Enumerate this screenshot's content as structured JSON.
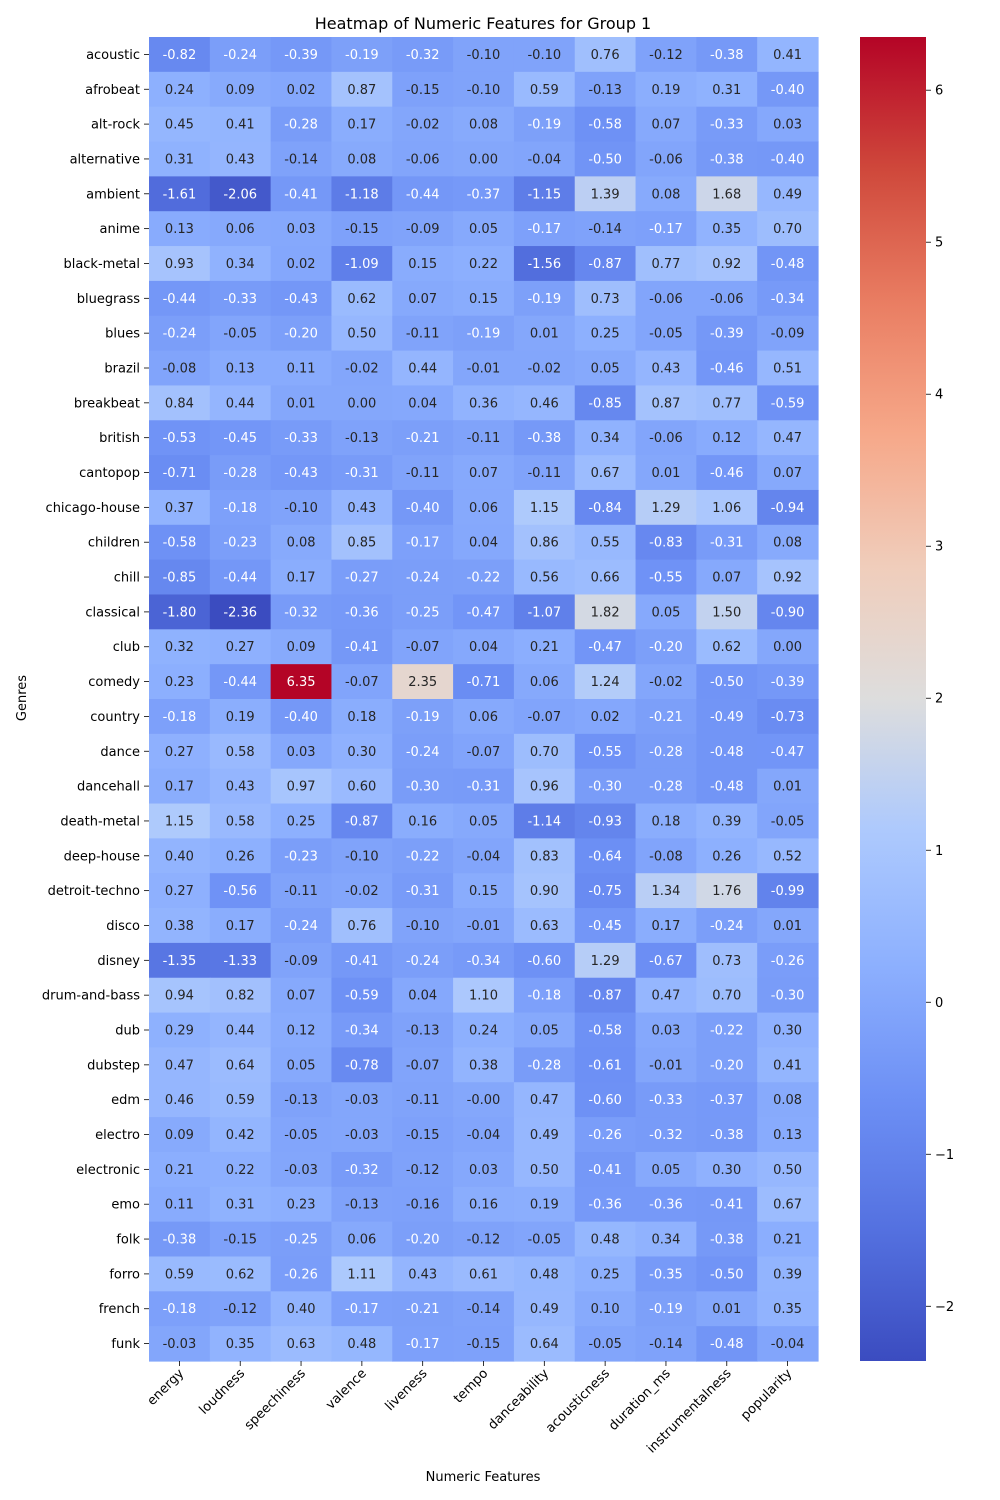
{
  "chart_data": {
    "type": "heatmap",
    "title": "Heatmap of Numeric Features for Group 1",
    "xlabel": "Numeric Features",
    "ylabel": "Genres",
    "columns": [
      "energy",
      "loudness",
      "speechiness",
      "valence",
      "liveness",
      "tempo",
      "danceability",
      "acousticness",
      "duration_ms",
      "instrumentalness",
      "popularity"
    ],
    "rows": [
      "acoustic",
      "afrobeat",
      "alt-rock",
      "alternative",
      "ambient",
      "anime",
      "black-metal",
      "bluegrass",
      "blues",
      "brazil",
      "breakbeat",
      "british",
      "cantopop",
      "chicago-house",
      "children",
      "chill",
      "classical",
      "club",
      "comedy",
      "country",
      "dance",
      "dancehall",
      "death-metal",
      "deep-house",
      "detroit-techno",
      "disco",
      "disney",
      "drum-and-bass",
      "dub",
      "dubstep",
      "edm",
      "electro",
      "electronic",
      "emo",
      "folk",
      "forro",
      "french",
      "funk"
    ],
    "values": [
      [
        "-0.82",
        "-0.24",
        "-0.39",
        "-0.19",
        "-0.32",
        "-0.10",
        "-0.10",
        "0.76",
        "-0.12",
        "-0.38",
        "0.41"
      ],
      [
        "0.24",
        "0.09",
        "0.02",
        "0.87",
        "-0.15",
        "-0.10",
        "0.59",
        "-0.13",
        "0.19",
        "0.31",
        "-0.40"
      ],
      [
        "0.45",
        "0.41",
        "-0.28",
        "0.17",
        "-0.02",
        "0.08",
        "-0.19",
        "-0.58",
        "0.07",
        "-0.33",
        "0.03"
      ],
      [
        "0.31",
        "0.43",
        "-0.14",
        "0.08",
        "-0.06",
        "0.00",
        "-0.04",
        "-0.50",
        "-0.06",
        "-0.38",
        "-0.40"
      ],
      [
        "-1.61",
        "-2.06",
        "-0.41",
        "-1.18",
        "-0.44",
        "-0.37",
        "-1.15",
        "1.39",
        "0.08",
        "1.68",
        "0.49"
      ],
      [
        "0.13",
        "0.06",
        "0.03",
        "-0.15",
        "-0.09",
        "0.05",
        "-0.17",
        "-0.14",
        "-0.17",
        "0.35",
        "0.70"
      ],
      [
        "0.93",
        "0.34",
        "0.02",
        "-1.09",
        "0.15",
        "0.22",
        "-1.56",
        "-0.87",
        "0.77",
        "0.92",
        "-0.48"
      ],
      [
        "-0.44",
        "-0.33",
        "-0.43",
        "0.62",
        "0.07",
        "0.15",
        "-0.19",
        "0.73",
        "-0.06",
        "-0.06",
        "-0.34"
      ],
      [
        "-0.24",
        "-0.05",
        "-0.20",
        "0.50",
        "-0.11",
        "-0.19",
        "0.01",
        "0.25",
        "-0.05",
        "-0.39",
        "-0.09"
      ],
      [
        "-0.08",
        "0.13",
        "0.11",
        "-0.02",
        "0.44",
        "-0.01",
        "-0.02",
        "0.05",
        "0.43",
        "-0.46",
        "0.51"
      ],
      [
        "0.84",
        "0.44",
        "0.01",
        "0.00",
        "0.04",
        "0.36",
        "0.46",
        "-0.85",
        "0.87",
        "0.77",
        "-0.59"
      ],
      [
        "-0.53",
        "-0.45",
        "-0.33",
        "-0.13",
        "-0.21",
        "-0.11",
        "-0.38",
        "0.34",
        "-0.06",
        "0.12",
        "0.47"
      ],
      [
        "-0.71",
        "-0.28",
        "-0.43",
        "-0.31",
        "-0.11",
        "0.07",
        "-0.11",
        "0.67",
        "0.01",
        "-0.46",
        "0.07"
      ],
      [
        "0.37",
        "-0.18",
        "-0.10",
        "0.43",
        "-0.40",
        "0.06",
        "1.15",
        "-0.84",
        "1.29",
        "1.06",
        "-0.94"
      ],
      [
        "-0.58",
        "-0.23",
        "0.08",
        "0.85",
        "-0.17",
        "0.04",
        "0.86",
        "0.55",
        "-0.83",
        "-0.31",
        "0.08"
      ],
      [
        "-0.85",
        "-0.44",
        "0.17",
        "-0.27",
        "-0.24",
        "-0.22",
        "0.56",
        "0.66",
        "-0.55",
        "0.07",
        "0.92"
      ],
      [
        "-1.80",
        "-2.36",
        "-0.32",
        "-0.36",
        "-0.25",
        "-0.47",
        "-1.07",
        "1.82",
        "0.05",
        "1.50",
        "-0.90"
      ],
      [
        "0.32",
        "0.27",
        "0.09",
        "-0.41",
        "-0.07",
        "0.04",
        "0.21",
        "-0.47",
        "-0.20",
        "0.62",
        "0.00"
      ],
      [
        "0.23",
        "-0.44",
        "6.35",
        "-0.07",
        "2.35",
        "-0.71",
        "0.06",
        "1.24",
        "-0.02",
        "-0.50",
        "-0.39"
      ],
      [
        "-0.18",
        "0.19",
        "-0.40",
        "0.18",
        "-0.19",
        "0.06",
        "-0.07",
        "0.02",
        "-0.21",
        "-0.49",
        "-0.73"
      ],
      [
        "0.27",
        "0.58",
        "0.03",
        "0.30",
        "-0.24",
        "-0.07",
        "0.70",
        "-0.55",
        "-0.28",
        "-0.48",
        "-0.47"
      ],
      [
        "0.17",
        "0.43",
        "0.97",
        "0.60",
        "-0.30",
        "-0.31",
        "0.96",
        "-0.30",
        "-0.28",
        "-0.48",
        "0.01"
      ],
      [
        "1.15",
        "0.58",
        "0.25",
        "-0.87",
        "0.16",
        "0.05",
        "-1.14",
        "-0.93",
        "0.18",
        "0.39",
        "-0.05"
      ],
      [
        "0.40",
        "0.26",
        "-0.23",
        "-0.10",
        "-0.22",
        "-0.04",
        "0.83",
        "-0.64",
        "-0.08",
        "0.26",
        "0.52"
      ],
      [
        "0.27",
        "-0.56",
        "-0.11",
        "-0.02",
        "-0.31",
        "0.15",
        "0.90",
        "-0.75",
        "1.34",
        "1.76",
        "-0.99"
      ],
      [
        "0.38",
        "0.17",
        "-0.24",
        "0.76",
        "-0.10",
        "-0.01",
        "0.63",
        "-0.45",
        "0.17",
        "-0.24",
        "0.01"
      ],
      [
        "-1.35",
        "-1.33",
        "-0.09",
        "-0.41",
        "-0.24",
        "-0.34",
        "-0.60",
        "1.29",
        "-0.67",
        "0.73",
        "-0.26"
      ],
      [
        "0.94",
        "0.82",
        "0.07",
        "-0.59",
        "0.04",
        "1.10",
        "-0.18",
        "-0.87",
        "0.47",
        "0.70",
        "-0.30"
      ],
      [
        "0.29",
        "0.44",
        "0.12",
        "-0.34",
        "-0.13",
        "0.24",
        "0.05",
        "-0.58",
        "0.03",
        "-0.22",
        "0.30"
      ],
      [
        "0.47",
        "0.64",
        "0.05",
        "-0.78",
        "-0.07",
        "0.38",
        "-0.28",
        "-0.61",
        "-0.01",
        "-0.20",
        "0.41"
      ],
      [
        "0.46",
        "0.59",
        "-0.13",
        "-0.03",
        "-0.11",
        "-0.00",
        "0.47",
        "-0.60",
        "-0.33",
        "-0.37",
        "0.08"
      ],
      [
        "0.09",
        "0.42",
        "-0.05",
        "-0.03",
        "-0.15",
        "-0.04",
        "0.49",
        "-0.26",
        "-0.32",
        "-0.38",
        "0.13"
      ],
      [
        "0.21",
        "0.22",
        "-0.03",
        "-0.32",
        "-0.12",
        "0.03",
        "0.50",
        "-0.41",
        "0.05",
        "0.30",
        "0.50"
      ],
      [
        "0.11",
        "0.31",
        "0.23",
        "-0.13",
        "-0.16",
        "0.16",
        "0.19",
        "-0.36",
        "-0.36",
        "-0.41",
        "0.67"
      ],
      [
        "-0.38",
        "-0.15",
        "-0.25",
        "0.06",
        "-0.20",
        "-0.12",
        "-0.05",
        "0.48",
        "0.34",
        "-0.38",
        "0.21"
      ],
      [
        "0.59",
        "0.62",
        "-0.26",
        "1.11",
        "0.43",
        "0.61",
        "0.48",
        "0.25",
        "-0.35",
        "-0.50",
        "0.39"
      ],
      [
        "-0.18",
        "-0.12",
        "0.40",
        "-0.17",
        "-0.21",
        "-0.14",
        "0.49",
        "0.10",
        "-0.19",
        "0.01",
        "0.35"
      ],
      [
        "-0.03",
        "0.35",
        "0.63",
        "0.48",
        "-0.17",
        "-0.15",
        "0.64",
        "-0.05",
        "-0.14",
        "-0.48",
        "-0.04"
      ]
    ],
    "colormap": "coolwarm",
    "vmin": -2.36,
    "vmax": 6.35,
    "colorbar_ticks": [
      "6",
      "5",
      "4",
      "3",
      "2",
      "1",
      "0",
      "−1",
      "−2"
    ],
    "colorbar_tick_values": [
      6,
      5,
      4,
      3,
      2,
      1,
      0,
      -1,
      -2
    ],
    "grid": false,
    "legend": "colorbar-right"
  }
}
